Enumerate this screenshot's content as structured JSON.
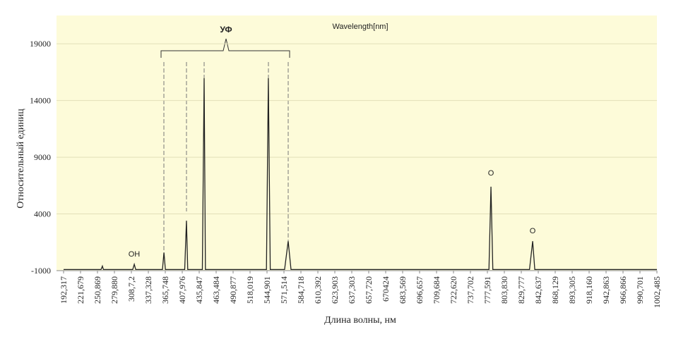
{
  "chart_data": {
    "type": "line",
    "title": "Wavelength[nm]",
    "xlabel": "Длина волны, нм",
    "ylabel": "Относительный единиц",
    "annotations": [
      "УФ",
      "OH",
      "O",
      "O"
    ],
    "xticks": [
      {
        "value": 192.317,
        "label": "192,317"
      },
      {
        "value": 221.679,
        "label": "221,679"
      },
      {
        "value": 250.869,
        "label": "250,869"
      },
      {
        "value": 279.88,
        "label": "279,880"
      },
      {
        "value": 308.72,
        "label": "308,7,2"
      },
      {
        "value": 337.328,
        "label": "337,328"
      },
      {
        "value": 365.748,
        "label": "365,748"
      },
      {
        "value": 407.976,
        "label": "407,976"
      },
      {
        "value": 435.847,
        "label": "435,847"
      },
      {
        "value": 463.484,
        "label": "463,484"
      },
      {
        "value": 490.877,
        "label": "490,877"
      },
      {
        "value": 518.019,
        "label": "518,019"
      },
      {
        "value": 544.901,
        "label": "544,901"
      },
      {
        "value": 571.514,
        "label": "571,514"
      },
      {
        "value": 584.718,
        "label": "584,718"
      },
      {
        "value": 610.392,
        "label": "610,392"
      },
      {
        "value": 623.903,
        "label": "623,903"
      },
      {
        "value": 637.303,
        "label": "637,303"
      },
      {
        "value": 657.72,
        "label": "657,720"
      },
      {
        "value": 670.424,
        "label": "670424"
      },
      {
        "value": 683.569,
        "label": "683,569"
      },
      {
        "value": 696.657,
        "label": "696,657"
      },
      {
        "value": 709.684,
        "label": "709,684"
      },
      {
        "value": 722.62,
        "label": "722,620"
      },
      {
        "value": 737.702,
        "label": "737,702"
      },
      {
        "value": 777.591,
        "label": "777,591"
      },
      {
        "value": 803.83,
        "label": "803,830"
      },
      {
        "value": 829.777,
        "label": "829,777"
      },
      {
        "value": 842.637,
        "label": "842,637"
      },
      {
        "value": 868.129,
        "label": "868,129"
      },
      {
        "value": 893.305,
        "label": "893,305"
      },
      {
        "value": 918.16,
        "label": "918,160"
      },
      {
        "value": 942.863,
        "label": "942,863"
      },
      {
        "value": 966.866,
        "label": "966,866"
      },
      {
        "value": 990.701,
        "label": "990,701"
      },
      {
        "value": 1002.485,
        "label": "1002,485"
      }
    ],
    "ylim": [
      -1000,
      21000
    ],
    "yticks": [
      -1000,
      4000,
      9000,
      14000,
      19000
    ],
    "grid": true,
    "series": [
      {
        "color": "#222222",
        "x": [
          192.317,
          257,
          259.3,
          261,
          311,
          313.6,
          316,
          361,
          363.5,
          366,
          412,
          414.9,
          417,
          441,
          443.9,
          446,
          544,
          547,
          550,
          572,
          574.8,
          577,
          780,
          783.1,
          786,
          836,
          838.4,
          840,
          1002.485
        ],
        "values": [
          -900,
          -900,
          -600,
          -900,
          -900,
          -440,
          -900,
          -900,
          600,
          -900,
          -900,
          3400,
          -900,
          -900,
          16000,
          -900,
          -900,
          16000,
          -900,
          -900,
          1600,
          -900,
          -900,
          6400,
          -900,
          -900,
          1600,
          -900,
          -900
        ]
      }
    ]
  }
}
